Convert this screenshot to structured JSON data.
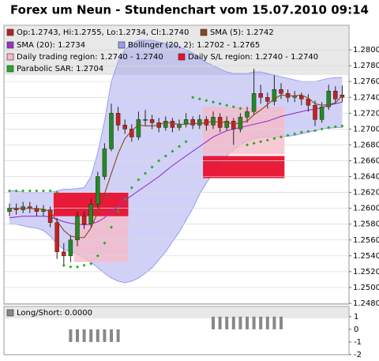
{
  "chart_data": {
    "type": "candlestick",
    "title": "Forex um Neun - Stundenchart vom 15.07.2010 09:14",
    "ohlc_label": "Op:1.2743, Hi:1.2755, Lo:1.2734, Cl:1.2740",
    "ohlc_color": "#b22222",
    "up_color": "#228b22",
    "down_color": "#cc1f1f",
    "open": [
      1.2596,
      1.26,
      1.2598,
      1.2602,
      1.26,
      1.2596,
      1.2598,
      1.2582,
      1.2545,
      1.254,
      1.256,
      1.259,
      1.258,
      1.2605,
      1.264,
      1.2675,
      1.272,
      1.2705,
      1.27,
      1.269,
      1.2712,
      1.2712,
      1.2708,
      1.2702,
      1.271,
      1.2702,
      1.2706,
      1.2712,
      1.2705,
      1.2712,
      1.2705,
      1.2715,
      1.2702,
      1.271,
      1.27,
      1.2715,
      1.2722,
      1.2745,
      1.274,
      1.2735,
      1.275,
      1.2745,
      1.274,
      1.2742,
      1.2738,
      1.273,
      1.2712,
      1.2728,
      1.2748,
      1.2743
    ],
    "high": [
      1.2606,
      1.2606,
      1.2608,
      1.2608,
      1.2604,
      1.2604,
      1.2602,
      1.2588,
      1.2556,
      1.2566,
      1.2596,
      1.2596,
      1.2612,
      1.2646,
      1.2682,
      1.2732,
      1.2728,
      1.2712,
      1.2706,
      1.2722,
      1.2724,
      1.2718,
      1.2714,
      1.2716,
      1.2714,
      1.2712,
      1.272,
      1.2716,
      1.2718,
      1.2716,
      1.2722,
      1.272,
      1.2716,
      1.2714,
      1.272,
      1.2728,
      1.2776,
      1.2756,
      1.2746,
      1.2768,
      1.2758,
      1.275,
      1.2748,
      1.2746,
      1.2744,
      1.2736,
      1.2734,
      1.2756,
      1.2754,
      1.2755
    ],
    "low": [
      1.259,
      1.2592,
      1.2594,
      1.2594,
      1.259,
      1.259,
      1.2576,
      1.2536,
      1.2526,
      1.2532,
      1.2552,
      1.2574,
      1.2576,
      1.26,
      1.2636,
      1.2672,
      1.2698,
      1.2694,
      1.2684,
      1.2686,
      1.2704,
      1.27,
      1.2696,
      1.2698,
      1.2696,
      1.2698,
      1.2702,
      1.27,
      1.27,
      1.2698,
      1.27,
      1.2696,
      1.2698,
      1.268,
      1.2696,
      1.2708,
      1.2718,
      1.2732,
      1.2726,
      1.273,
      1.2738,
      1.2734,
      1.2734,
      1.273,
      1.2722,
      1.2704,
      1.2708,
      1.2724,
      1.2732,
      1.2734
    ],
    "close": [
      1.26,
      1.2598,
      1.2602,
      1.26,
      1.2596,
      1.2598,
      1.2582,
      1.2545,
      1.254,
      1.256,
      1.259,
      1.258,
      1.2605,
      1.264,
      1.2675,
      1.272,
      1.2705,
      1.27,
      1.269,
      1.2712,
      1.2712,
      1.2708,
      1.2702,
      1.271,
      1.2702,
      1.2706,
      1.2712,
      1.2705,
      1.2712,
      1.2705,
      1.2715,
      1.2702,
      1.271,
      1.27,
      1.2715,
      1.2722,
      1.2745,
      1.274,
      1.2735,
      1.275,
      1.2745,
      1.274,
      1.2742,
      1.2738,
      1.273,
      1.2712,
      1.2728,
      1.2748,
      1.2738,
      1.274
    ],
    "bands": {
      "name": "Bollinger (20, 2): 1.2702 - 1.2765",
      "color": "#9a9af0",
      "upper": [
        1.2622,
        1.2622,
        1.262,
        1.262,
        1.262,
        1.262,
        1.262,
        1.2622,
        1.2624,
        1.2624,
        1.2625,
        1.2626,
        1.264,
        1.267,
        1.271,
        1.276,
        1.2785,
        1.28,
        1.2808,
        1.2812,
        1.2812,
        1.2812,
        1.281,
        1.2808,
        1.2806,
        1.2804,
        1.28,
        1.2796,
        1.279,
        1.2784,
        1.278,
        1.2776,
        1.2772,
        1.277,
        1.277,
        1.277,
        1.2772,
        1.2772,
        1.277,
        1.2768,
        1.2766,
        1.2764,
        1.2762,
        1.276,
        1.276,
        1.276,
        1.2762,
        1.2764,
        1.2765,
        1.2765
      ],
      "lower": [
        1.258,
        1.258,
        1.2578,
        1.2576,
        1.2575,
        1.2572,
        1.2565,
        1.2555,
        1.2548,
        1.2545,
        1.2542,
        1.2538,
        1.2532,
        1.2525,
        1.2518,
        1.2512,
        1.2508,
        1.2506,
        1.2508,
        1.2512,
        1.2518,
        1.2525,
        1.2535,
        1.2545,
        1.2558,
        1.257,
        1.2585,
        1.26,
        1.2618,
        1.2632,
        1.2645,
        1.2656,
        1.2666,
        1.2674,
        1.268,
        1.2685,
        1.2688,
        1.269,
        1.269,
        1.269,
        1.269,
        1.2691,
        1.2692,
        1.2694,
        1.2696,
        1.2698,
        1.27,
        1.2701,
        1.2702,
        1.2702
      ]
    },
    "regions": [
      {
        "name": "Daily trading region: 1.2740 - 1.2740",
        "color": "#f7b8c4",
        "items": [
          {
            "start": 10,
            "end": 17,
            "low": 1.2532,
            "high": 1.259
          },
          {
            "start": 29,
            "end": 40,
            "low": 1.2668,
            "high": 1.2728
          }
        ]
      },
      {
        "name": "Daily S/L region: 1.2740 - 1.2740",
        "color": "#e8102e",
        "items": [
          {
            "start": 7,
            "end": 17,
            "low": 1.259,
            "high": 1.262
          },
          {
            "start": 29,
            "end": 40,
            "low": 1.2638,
            "high": 1.2666
          }
        ]
      }
    ],
    "series": [
      {
        "name": "SMA (5): 1.2742",
        "color": "#8b4513",
        "values": [
          1.26,
          1.26,
          1.26,
          1.26,
          1.2599,
          1.2599,
          1.2596,
          1.2584,
          1.2572,
          1.2565,
          1.2563,
          1.2563,
          1.2575,
          1.2595,
          1.2618,
          1.2644,
          1.2669,
          1.2688,
          1.2698,
          1.2705,
          1.2704,
          1.2704,
          1.2705,
          1.2709,
          1.2707,
          1.2706,
          1.2706,
          1.2707,
          1.2707,
          1.2708,
          1.271,
          1.2708,
          1.2709,
          1.2706,
          1.2708,
          1.271,
          1.2718,
          1.2724,
          1.2731,
          1.2738,
          1.2743,
          1.2742,
          1.2742,
          1.2743,
          1.2739,
          1.2732,
          1.273,
          1.2731,
          1.2733,
          1.2742
        ]
      },
      {
        "name": "SMA (20): 1.2734",
        "color": "#9932cc",
        "values": [
          1.2588,
          1.2589,
          1.259,
          1.259,
          1.259,
          1.259,
          1.2589,
          1.2586,
          1.2583,
          1.2581,
          1.258,
          1.2579,
          1.258,
          1.2583,
          1.2588,
          1.2596,
          1.2603,
          1.261,
          1.2616,
          1.2622,
          1.2628,
          1.2634,
          1.264,
          1.2647,
          1.2654,
          1.266,
          1.2666,
          1.2672,
          1.2678,
          1.2684,
          1.269,
          1.2694,
          1.2698,
          1.27,
          1.2702,
          1.2704,
          1.2706,
          1.2708,
          1.271,
          1.2713,
          1.2716,
          1.2718,
          1.272,
          1.2722,
          1.2724,
          1.2725,
          1.2727,
          1.273,
          1.2732,
          1.2734
        ]
      },
      {
        "name": "Parabolic SAR: 1.2704",
        "color": "#22aa22",
        "style": "dots",
        "values": [
          1.2622,
          1.2622,
          1.2622,
          1.2622,
          1.2622,
          1.2622,
          1.2622,
          1.262,
          1.2528,
          1.2526,
          1.2526,
          1.2528,
          1.253,
          1.254,
          1.2556,
          1.2576,
          1.2596,
          1.2612,
          1.2626,
          1.2636,
          1.2644,
          1.2652,
          1.266,
          1.2666,
          1.2672,
          1.2678,
          1.2684,
          1.274,
          1.2738,
          1.2736,
          1.2734,
          1.2732,
          1.273,
          1.2728,
          1.2726,
          1.268,
          1.2682,
          1.2684,
          1.2686,
          1.2688,
          1.269,
          1.2692,
          1.2694,
          1.2696,
          1.2697,
          1.2698,
          1.27,
          1.2702,
          1.2703,
          1.2704
        ]
      }
    ],
    "ylim": [
      1.2479,
      1.2831
    ],
    "yticks": [
      {
        "value": 1.248,
        "label": "1.2480"
      },
      {
        "value": 1.25,
        "label": "1.2500"
      },
      {
        "value": 1.252,
        "label": "1.2520"
      },
      {
        "value": 1.254,
        "label": "1.2540"
      },
      {
        "value": 1.256,
        "label": "1.2560"
      },
      {
        "value": 1.258,
        "label": "1.2580"
      },
      {
        "value": 1.26,
        "label": "1.2600"
      },
      {
        "value": 1.262,
        "label": "1.2620"
      },
      {
        "value": 1.264,
        "label": "1.2640"
      },
      {
        "value": 1.266,
        "label": "1.2660"
      },
      {
        "value": 1.268,
        "label": "1.2680"
      },
      {
        "value": 1.27,
        "label": "1.2700"
      },
      {
        "value": 1.272,
        "label": "1.2720"
      },
      {
        "value": 1.274,
        "label": "1.2740"
      },
      {
        "value": 1.276,
        "label": "1.2760"
      },
      {
        "value": 1.278,
        "label": "1.2780"
      },
      {
        "value": 1.28,
        "label": "1.2800"
      }
    ],
    "grid": true,
    "indicator": {
      "type": "bar",
      "title": "Long/Short: 0.0000",
      "color": "#888888",
      "values": [
        0,
        0,
        0,
        0,
        0,
        0,
        0,
        0,
        0,
        -1,
        -1,
        -1,
        -1,
        -1,
        -1,
        -1,
        -1,
        0,
        0,
        0,
        0,
        0,
        0,
        0,
        0,
        0,
        0,
        0,
        0,
        0,
        1,
        1,
        1,
        1,
        1,
        1,
        1,
        1,
        1,
        1,
        1,
        0,
        0,
        0,
        0,
        0,
        0,
        0,
        0,
        0
      ],
      "ylim": [
        -2,
        1.8
      ],
      "yticks": [
        1,
        0,
        -1,
        -2
      ]
    }
  }
}
